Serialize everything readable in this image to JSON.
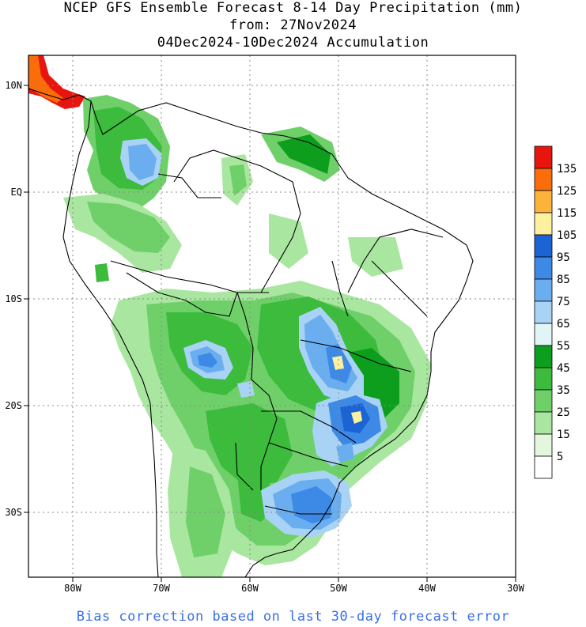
{
  "title": {
    "line1": "NCEP GFS Ensemble Forecast 8-14 Day Precipitation (mm)",
    "line2": "from: 27Nov2024",
    "line3": "04Dec2024-10Dec2024 Accumulation"
  },
  "axes": {
    "lat_labels": [
      "10N",
      "EQ",
      "10S",
      "20S",
      "30S"
    ],
    "lon_labels": [
      "80W",
      "70W",
      "60W",
      "50W",
      "40W",
      "30W"
    ]
  },
  "legend": {
    "labels": [
      "135",
      "125",
      "115",
      "105",
      "95",
      "85",
      "75",
      "65",
      "55",
      "45",
      "35",
      "25",
      "15",
      "5"
    ],
    "colors": [
      "#e8150f",
      "#fb6c0a",
      "#fbb33b",
      "#fdf09e",
      "#1c64d4",
      "#3d8ae6",
      "#6aaef0",
      "#a9d3f5",
      "#e1f5f7",
      "#0e9e1e",
      "#3cbb3c",
      "#6fd06a",
      "#a9e6a0",
      "#e2f7dc",
      "#ffffff"
    ]
  },
  "footer": "Bias correction based on last 30-day forecast error"
}
